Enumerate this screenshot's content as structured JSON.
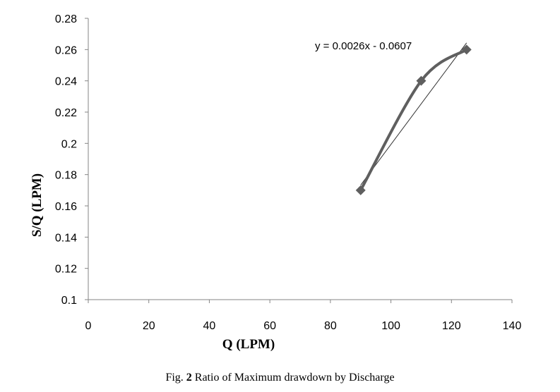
{
  "chart_data": {
    "type": "line",
    "xlabel": "Q (LPM)",
    "ylabel": "S/Q (LPM)",
    "xlim": [
      0,
      140
    ],
    "ylim": [
      0.1,
      0.28
    ],
    "x_ticks": [
      "0",
      "20",
      "40",
      "60",
      "80",
      "100",
      "120",
      "140"
    ],
    "y_ticks": [
      "0.1",
      "0.12",
      "0.14",
      "0.16",
      "0.18",
      "0.2",
      "0.22",
      "0.24",
      "0.26",
      "0.28"
    ],
    "grid": false,
    "legend": "none",
    "series": [
      {
        "marker": "diamond",
        "smoothed": true,
        "color": "#5f5f5f",
        "points": [
          {
            "x": 90,
            "y": 0.17
          },
          {
            "x": 110,
            "y": 0.24
          },
          {
            "x": 125,
            "y": 0.26
          }
        ]
      }
    ],
    "trendline": {
      "slope": 0.0026,
      "intercept": -0.0607,
      "x_range": [
        90,
        125
      ],
      "color": "#333333",
      "label": "y = 0.0026x - 0.0607"
    }
  },
  "caption": {
    "prefix": "Fig. ",
    "number": "2",
    "text": " Ratio of Maximum drawdown by Discharge"
  }
}
